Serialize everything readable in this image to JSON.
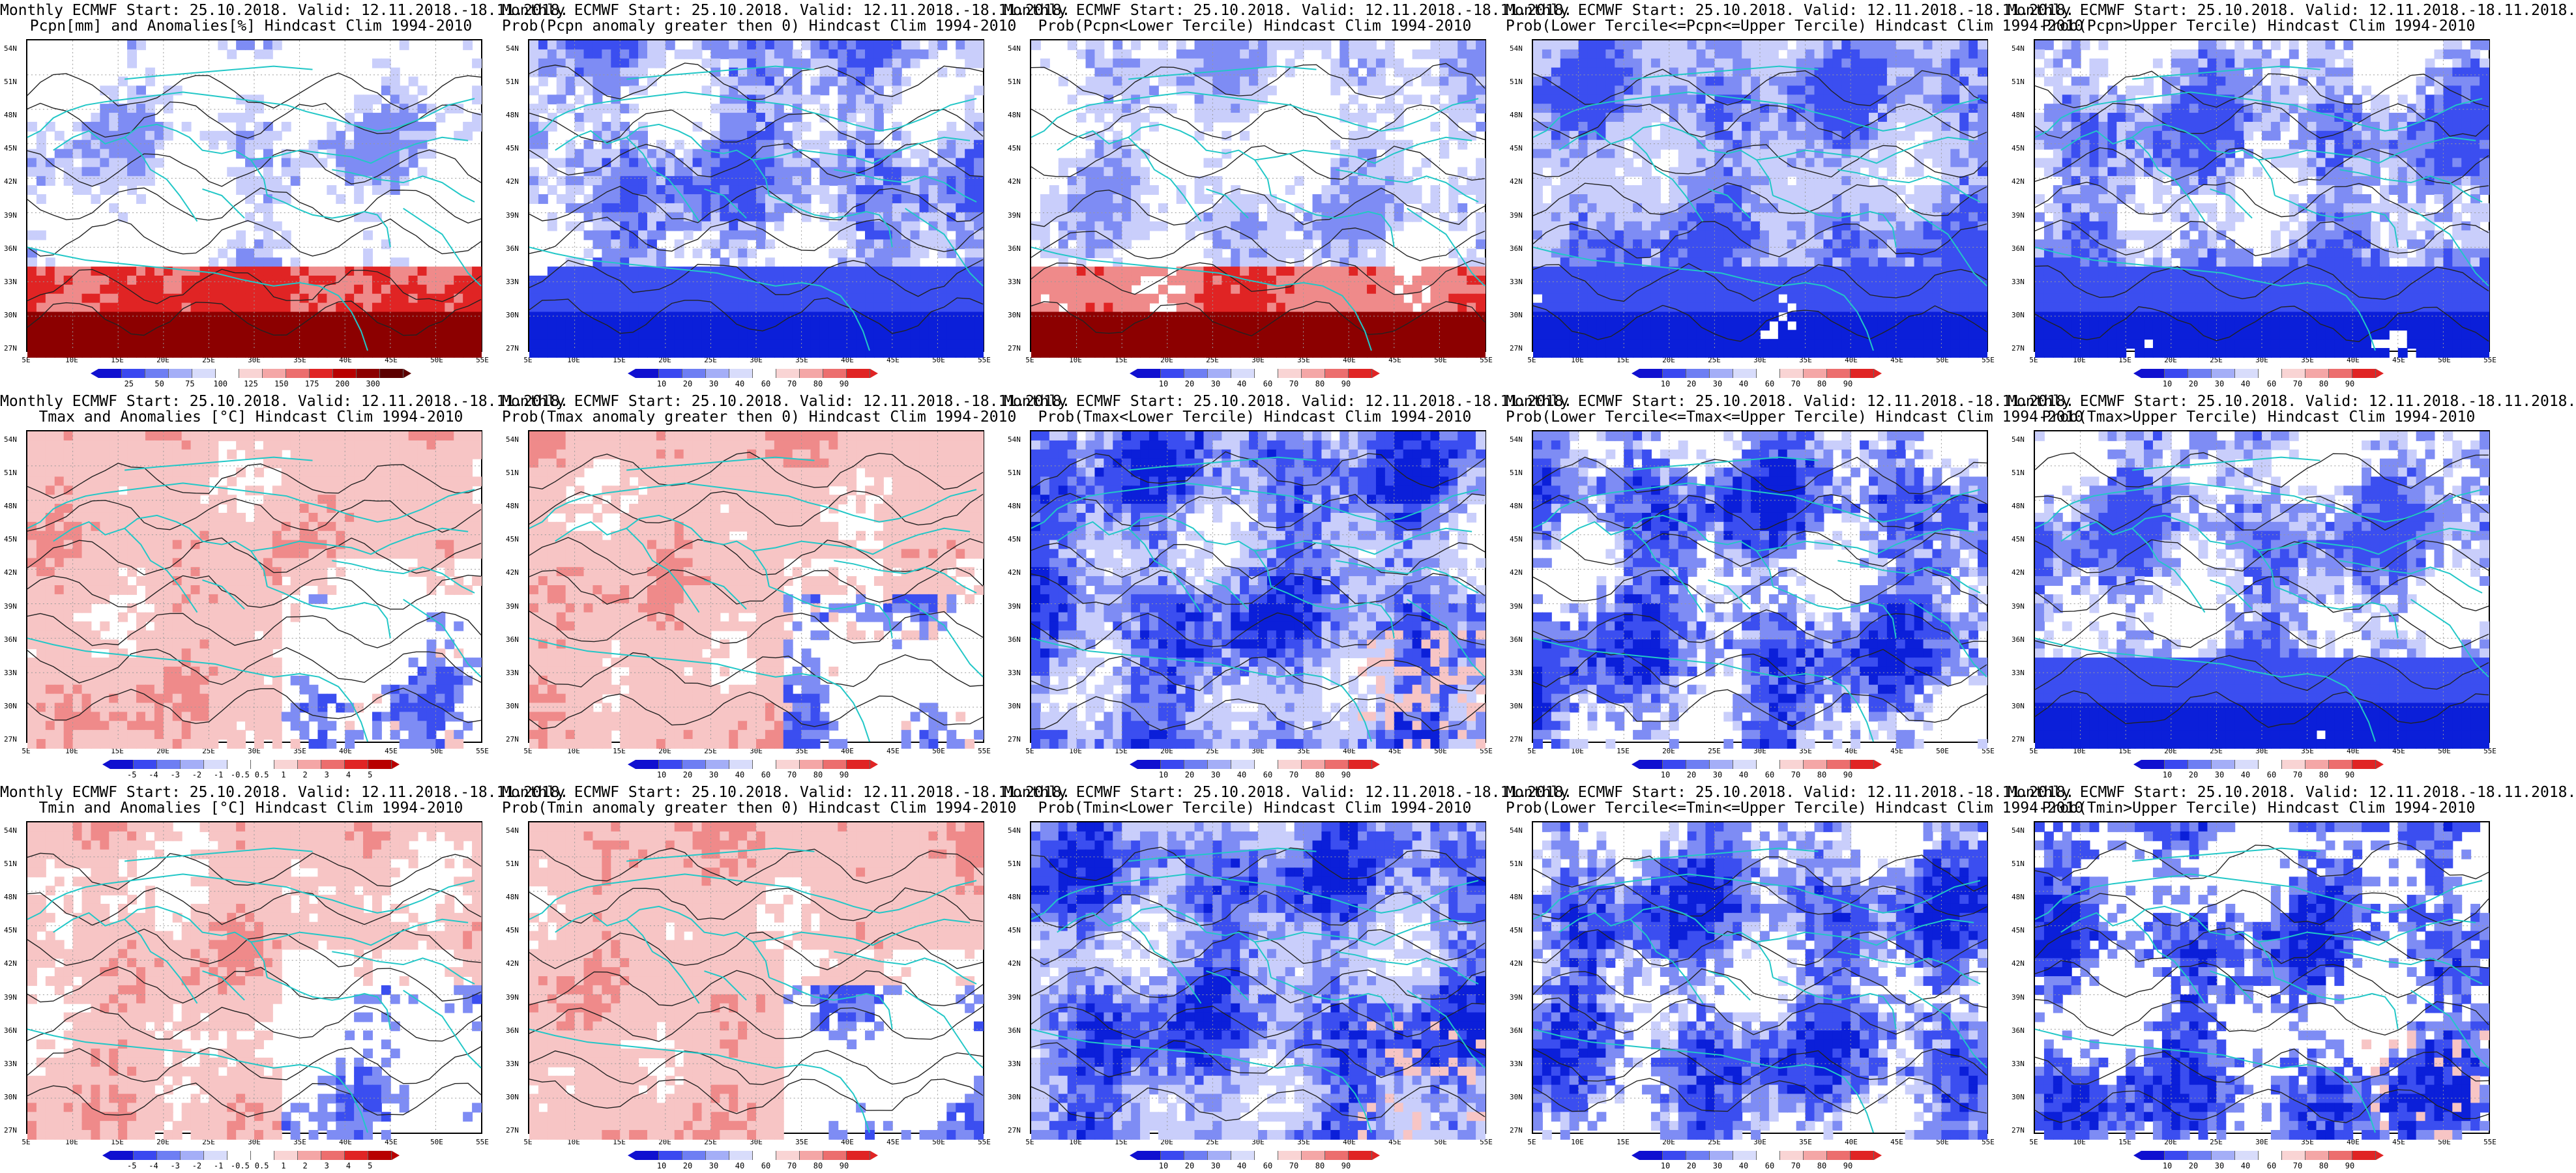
{
  "lat_labels": [
    "54N",
    "51N",
    "48N",
    "45N",
    "42N",
    "39N",
    "36N",
    "33N",
    "30N",
    "27N"
  ],
  "lon_labels": [
    "5E",
    "10E",
    "15E",
    "20E",
    "25E",
    "30E",
    "35E",
    "40E",
    "45E",
    "50E",
    "55E"
  ],
  "colors": {
    "blue_dark": "#0b1fd9",
    "blue": "#3b4ef0",
    "blue_mid": "#7e8cf4",
    "blue_light": "#c9cefb",
    "white": "#ffffff",
    "red_light": "#f7c5c5",
    "red_mid": "#ef8a8a",
    "red": "#e02424",
    "red_dark": "#8c0000",
    "coast": "#22c7c7",
    "contour": "#222222"
  },
  "scales": {
    "pcpn": {
      "colors": [
        "#1010d0",
        "#3a48f0",
        "#6e7ef3",
        "#a4aef7",
        "#d8dcfb",
        "#ffffff",
        "#f9d4d4",
        "#f4a6a6",
        "#ec6e6e",
        "#e02424",
        "#b80000",
        "#8c0000",
        "#5c0000"
      ],
      "ticks": [
        "25",
        "50",
        "75",
        "100",
        "125",
        "150",
        "175",
        "200",
        "300"
      ]
    },
    "prob": {
      "colors": [
        "#1010d0",
        "#3a48f0",
        "#6e7ef3",
        "#a4aef7",
        "#d8dcfb",
        "#ffffff",
        "#f9d4d4",
        "#f4a6a6",
        "#ec6e6e",
        "#e02424"
      ],
      "ticks": [
        "10",
        "20",
        "30",
        "40",
        "60",
        "70",
        "80",
        "90"
      ]
    },
    "temp": {
      "colors": [
        "#1010d0",
        "#3a48f0",
        "#6e7ef3",
        "#a4aef7",
        "#d8dcfb",
        "#ffffff",
        "#ffffff",
        "#f9d4d4",
        "#f4a6a6",
        "#ec6e6e",
        "#e02424",
        "#b80000"
      ],
      "ticks": [
        "-5",
        "-4",
        "-3",
        "-2",
        "-1",
        "-0.5",
        "0.5",
        "1",
        "2",
        "3",
        "4",
        "5"
      ]
    }
  },
  "panels": [
    {
      "id": "p1",
      "line1": "Monthly ECMWF Start: 25.10.2018. Valid: 12.11.2018.-18.11.2018.",
      "line2": "Pcpn[mm] and Anomalies[%] Hindcast Clim 1994-2010",
      "scale": "pcpn",
      "cover": 0.25,
      "red": 0.45,
      "pattern": "south-red"
    },
    {
      "id": "p2",
      "line1": "Monthly ECMWF Start: 25.10.2018. Valid: 12.11.2018.-18.11.2018.",
      "line2": "Prob(Pcpn anomaly greater then 0) Hindcast Clim 1994-2010",
      "scale": "prob",
      "cover": 0.6,
      "red": 0.0,
      "pattern": "south-blue"
    },
    {
      "id": "p3",
      "line1": "Monthly ECMWF Start: 25.10.2018. Valid: 12.11.2018.-18.11.2018.",
      "line2": "Prob(Pcpn<Lower Tercile) Hindcast Clim 1994-2010",
      "scale": "prob",
      "cover": 0.35,
      "red": 0.25,
      "pattern": "south-red"
    },
    {
      "id": "p4",
      "line1": "Monthly ECMWF Start: 25.10.2018. Valid: 12.11.2018.-18.11.2018.",
      "line2": "Prob(Lower Tercile<=Pcpn<=Upper Tercile) Hindcast Clim 1994-2010",
      "scale": "prob",
      "cover": 0.85,
      "red": 0.0,
      "pattern": "south-blue"
    },
    {
      "id": "p5",
      "line1": "Monthly ECMWF Start: 25.10.2018. Valid: 12.11.2018.-18.11.2018.",
      "line2": "Prob(Pcpn>Upper Tercile) Hindcast Clim 1994-2010",
      "scale": "prob",
      "cover": 0.6,
      "red": 0.0,
      "pattern": "south-blue"
    },
    {
      "id": "p6",
      "line1": "Monthly ECMWF Start: 25.10.2018. Valid: 12.11.2018.-18.11.2018.",
      "line2": "Tmax and Anomalies [°C] Hindcast Clim 1994-2010",
      "scale": "temp",
      "cover": 0.55,
      "red": 0.7,
      "pattern": "north-red"
    },
    {
      "id": "p7",
      "line1": "Monthly ECMWF Start: 25.10.2018. Valid: 12.11.2018.-18.11.2018.",
      "line2": "Prob(Tmax anomaly greater then 0) Hindcast Clim 1994-2010",
      "scale": "prob",
      "cover": 0.6,
      "red": 0.7,
      "pattern": "north-red"
    },
    {
      "id": "p8",
      "line1": "Monthly ECMWF Start: 25.10.2018. Valid: 12.11.2018.-18.11.2018.",
      "line2": "Prob(Tmax<Lower Tercile) Hindcast Clim 1994-2010",
      "scale": "prob",
      "cover": 0.8,
      "red": 0.1,
      "pattern": "mixed"
    },
    {
      "id": "p9",
      "line1": "Monthly ECMWF Start: 25.10.2018. Valid: 12.11.2018.-18.11.2018.",
      "line2": "Prob(Lower Tercile<=Tmax<=Upper Tercile) Hindcast Clim 1994-2010",
      "scale": "prob",
      "cover": 0.6,
      "red": 0.0,
      "pattern": "mixed"
    },
    {
      "id": "p10",
      "line1": "Monthly ECMWF Start: 25.10.2018. Valid: 12.11.2018.-18.11.2018.",
      "line2": "Prob(Tmax>Upper Tercile) Hindcast Clim 1994-2010",
      "scale": "prob",
      "cover": 0.55,
      "red": 0.0,
      "pattern": "south-blue"
    },
    {
      "id": "p11",
      "line1": "Monthly ECMWF Start: 25.10.2018. Valid: 12.11.2018.-18.11.2018.",
      "line2": "Tmin and Anomalies [°C] Hindcast Clim 1994-2010",
      "scale": "temp",
      "cover": 0.35,
      "red": 0.55,
      "pattern": "north-red"
    },
    {
      "id": "p12",
      "line1": "Monthly ECMWF Start: 25.10.2018. Valid: 12.11.2018.-18.11.2018.",
      "line2": "Prob(Tmin anomaly greater then 0) Hindcast Clim 1994-2010",
      "scale": "prob",
      "cover": 0.45,
      "red": 0.75,
      "pattern": "north-red"
    },
    {
      "id": "p13",
      "line1": "Monthly ECMWF Start: 25.10.2018. Valid: 12.11.2018.-18.11.2018.",
      "line2": "Prob(Tmin<Lower Tercile) Hindcast Clim 1994-2010",
      "scale": "prob",
      "cover": 0.85,
      "red": 0.05,
      "pattern": "mixed"
    },
    {
      "id": "p14",
      "line1": "Monthly ECMWF Start: 25.10.2018. Valid: 12.11.2018.-18.11.2018.",
      "line2": "Prob(Lower Tercile<=Tmin<=Upper Tercile) Hindcast Clim 1994-2010",
      "scale": "prob",
      "cover": 0.6,
      "red": 0.0,
      "pattern": "mixed"
    },
    {
      "id": "p15",
      "line1": "Monthly ECMWF Start: 25.10.2018. Valid: 12.11.2018.-18.11.2018.",
      "line2": "Prob(Tmin>Upper Tercile) Hindcast Clim 1994-2010",
      "scale": "prob",
      "cover": 0.45,
      "red": 0.05,
      "pattern": "mixed"
    }
  ]
}
